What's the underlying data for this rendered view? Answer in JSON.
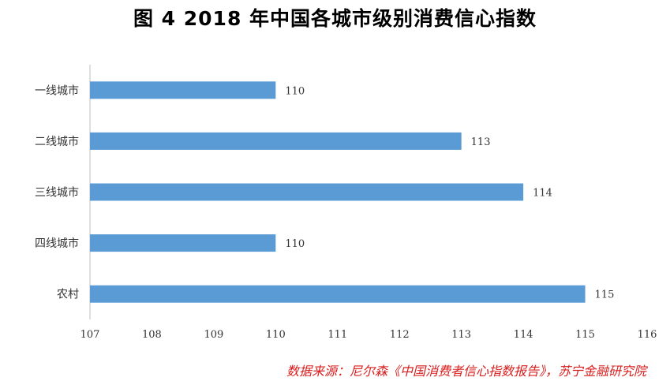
{
  "page": {
    "title": "图 4   2018 年中国各城市级别消费信心指数",
    "source": "数据来源：尼尔森《中国消费者信心指数报告》，苏宁金融研究院"
  },
  "colors": {
    "bar": "#5b9bd5",
    "axis": "#bfbfbf",
    "source_text": "#d81e1e"
  },
  "chart_data": {
    "type": "bar",
    "orientation": "horizontal",
    "title": "图 4   2018 年中国各城市级别消费信心指数",
    "categories": [
      "一线城市",
      "二线城市",
      "三线城市",
      "四线城市",
      "农村"
    ],
    "values": [
      110,
      113,
      114,
      110,
      115
    ],
    "xlim": [
      107,
      116
    ],
    "xticks": [
      107,
      108,
      109,
      110,
      111,
      112,
      113,
      114,
      115,
      116
    ],
    "data_labels": [
      "110",
      "113",
      "114",
      "110",
      "115"
    ],
    "grid": false,
    "legend": "none"
  }
}
